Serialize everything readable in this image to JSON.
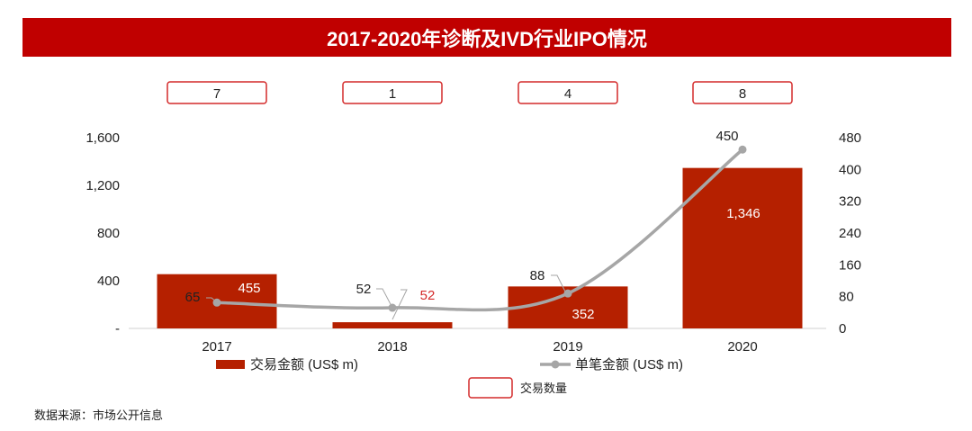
{
  "title": "2017-2020年诊断及IVD行业IPO情况",
  "source": "数据来源：市场公开信息",
  "chart_data": {
    "type": "bar+line",
    "categories": [
      "2017",
      "2018",
      "2019",
      "2020"
    ],
    "series": [
      {
        "name": "交易金额 (US$ m)",
        "type": "bar",
        "axis": "left",
        "values": [
          455,
          52,
          352,
          1346
        ],
        "labels": [
          "455",
          "52",
          "352",
          "1,346"
        ],
        "color": "#b52000"
      },
      {
        "name": "单笔金额 (US$ m)",
        "type": "line",
        "axis": "right",
        "values": [
          65,
          52,
          88,
          450
        ],
        "labels": [
          "65",
          "52",
          "88",
          "450"
        ],
        "color": "#a6a6a6"
      },
      {
        "name": "交易数量",
        "type": "box",
        "values": [
          7,
          1,
          4,
          8
        ],
        "labels": [
          "7",
          "1",
          "4",
          "8"
        ],
        "color": "#d42a2a"
      }
    ],
    "left_axis": {
      "ylim": [
        0,
        1600
      ],
      "ticks": [
        "-",
        "400",
        "800",
        "1,200",
        "1,600"
      ]
    },
    "right_axis": {
      "ylim": [
        0,
        480
      ],
      "ticks": [
        "0",
        "80",
        "160",
        "240",
        "320",
        "400",
        "480"
      ]
    },
    "legend": {
      "bar": "交易金额 (US$ m)",
      "line": "单笔金额 (US$ m)",
      "box": "交易数量"
    }
  }
}
